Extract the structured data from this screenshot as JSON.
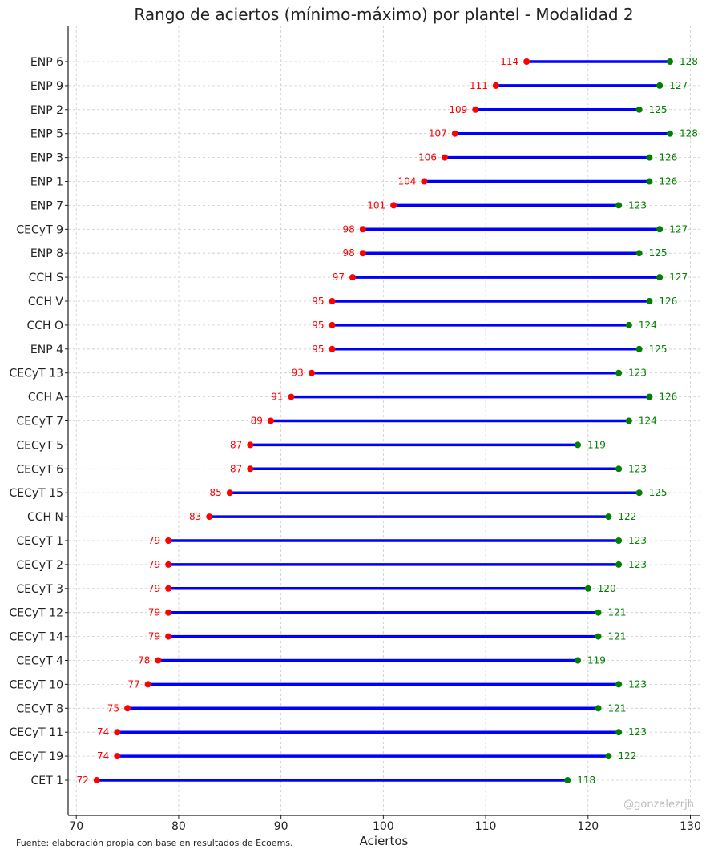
{
  "chart_data": {
    "type": "dumbbell",
    "title": "Rango de aciertos (mínimo-máximo) por plantel - Modalidad 2",
    "xlabel": "Aciertos",
    "ylabel": "",
    "xlim": [
      69.2,
      130.9
    ],
    "xticks": [
      70,
      80,
      90,
      100,
      110,
      120,
      130
    ],
    "grid": true,
    "footnote": "Fuente: elaboración propia con base en resultados de Ecoems.",
    "watermark": "@gonzalezrjh",
    "colors": {
      "line": "#0000ff",
      "min": "#ff0000",
      "max": "#008000"
    },
    "categories": [
      "ENP 6",
      "ENP 9",
      "ENP 2",
      "ENP 5",
      "ENP 3",
      "ENP 1",
      "ENP 7",
      "CECyT 9",
      "ENP 8",
      "CCH S",
      "CCH V",
      "CCH O",
      "ENP 4",
      "CECyT 13",
      "CCH A",
      "CECyT 7",
      "CECyT 5",
      "CECyT 6",
      "CECyT 15",
      "CCH N",
      "CECyT 1",
      "CECyT 2",
      "CECyT 3",
      "CECyT 12",
      "CECyT 14",
      "CECyT 4",
      "CECyT 10",
      "CECyT 8",
      "CECyT 11",
      "CECyT 19",
      "CET 1"
    ],
    "series": [
      {
        "name": "mínimo",
        "values": [
          114,
          111,
          109,
          107,
          106,
          104,
          101,
          98,
          98,
          97,
          95,
          95,
          95,
          93,
          91,
          89,
          87,
          87,
          85,
          83,
          79,
          79,
          79,
          79,
          79,
          78,
          77,
          75,
          74,
          74,
          72
        ]
      },
      {
        "name": "máximo",
        "values": [
          128,
          127,
          125,
          128,
          126,
          126,
          123,
          127,
          125,
          127,
          126,
          124,
          125,
          123,
          126,
          124,
          119,
          123,
          125,
          122,
          123,
          123,
          120,
          121,
          121,
          119,
          123,
          121,
          123,
          122,
          118
        ]
      }
    ]
  }
}
